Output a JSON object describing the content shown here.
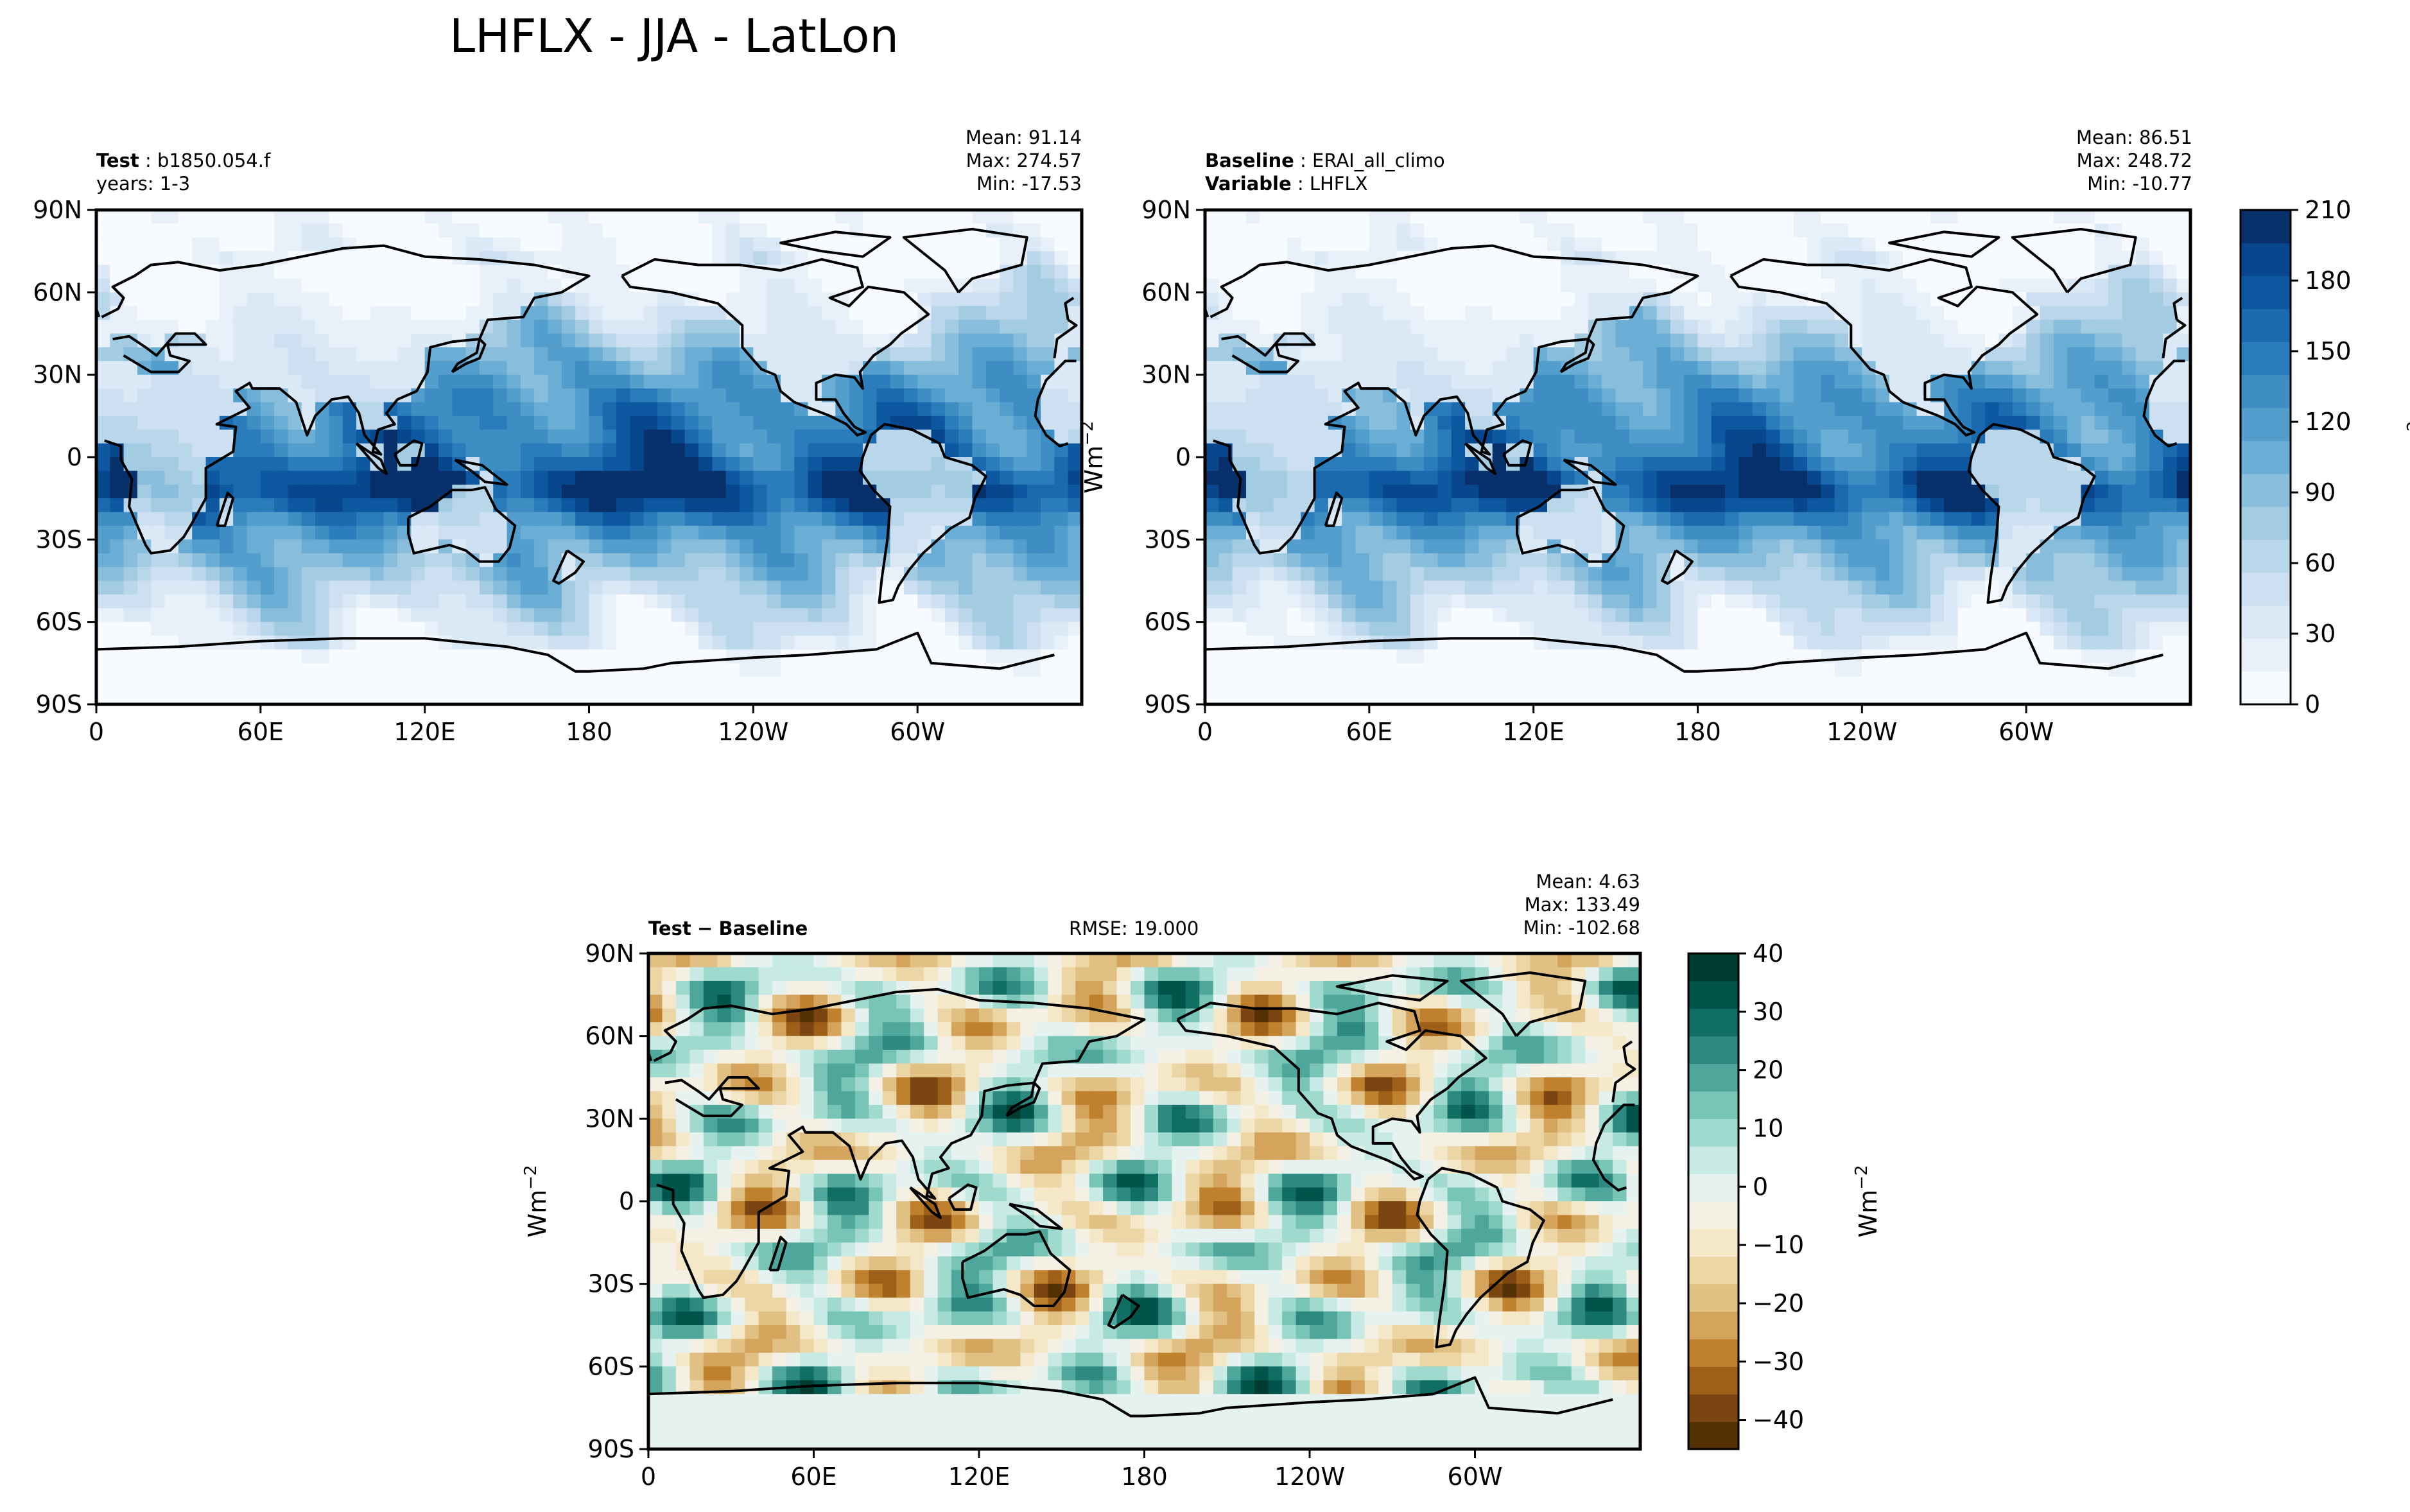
{
  "page": {
    "title": "LHFLX - JJA - LatLon"
  },
  "chart_data": [
    {
      "type": "heatmap",
      "panel": "test",
      "title_parts": {
        "label": "Test",
        "value": "b1850.054.f",
        "line2": "years: 1-3"
      },
      "stats": {
        "mean": "Mean: 91.14",
        "max": "Max: 274.57",
        "min": "Min: -17.53"
      },
      "x_ticks": [
        "0",
        "60E",
        "120E",
        "180",
        "120W",
        "60W"
      ],
      "y_ticks": [
        "90N",
        "60N",
        "30N",
        "0",
        "30S",
        "60S",
        "90S"
      ],
      "xlim": [
        0,
        360
      ],
      "ylim": [
        -90,
        90
      ],
      "colormap": "Blues",
      "units": "Wm$^{-2}$"
    },
    {
      "type": "heatmap",
      "panel": "baseline",
      "title_parts": {
        "label": "Baseline",
        "value": "ERAI_all_climo",
        "label2": "Variable",
        "value2": "LHFLX"
      },
      "stats": {
        "mean": "Mean: 86.51",
        "max": "Max: 248.72",
        "min": "Min: -10.77"
      },
      "x_ticks": [
        "0",
        "60E",
        "120E",
        "180",
        "120W",
        "60W"
      ],
      "y_ticks": [
        "90N",
        "60N",
        "30N",
        "0",
        "30S",
        "60S",
        "90S"
      ],
      "xlim": [
        0,
        360
      ],
      "ylim": [
        -90,
        90
      ],
      "ylabel": "Wm",
      "colorbar": {
        "ticks": [
          "210",
          "180",
          "150",
          "120",
          "90",
          "60",
          "30",
          "0"
        ],
        "range": [
          0,
          210
        ],
        "levels": 15,
        "label": "Wm",
        "colors": [
          "#f7fbff",
          "#e8f1fa",
          "#dbe9f6",
          "#cde0f1",
          "#bad6eb",
          "#a3cbe2",
          "#88bedc",
          "#6aaed6",
          "#539ecd",
          "#3e8ec4",
          "#2a7cba",
          "#1b6aaf",
          "#0d58a1",
          "#08478d",
          "#08306b"
        ]
      }
    },
    {
      "type": "heatmap",
      "panel": "difference",
      "title_parts": {
        "label": "Test",
        "op": "−",
        "label2": "Baseline"
      },
      "rmse": "RMSE: 19.000",
      "stats": {
        "mean": "Mean:  4.63",
        "max": "Max: 133.49",
        "min": "Min: -102.68"
      },
      "x_ticks": [
        "0",
        "60E",
        "120E",
        "180",
        "120W",
        "60W"
      ],
      "y_ticks": [
        "90N",
        "60N",
        "30N",
        "0",
        "30S",
        "60S",
        "90S"
      ],
      "xlim": [
        0,
        360
      ],
      "ylim": [
        -90,
        90
      ],
      "ylabel": "Wm",
      "colorbar": {
        "ticks": [
          "40",
          "30",
          "20",
          "10",
          "0",
          "−10",
          "−20",
          "−30",
          "−40"
        ],
        "range": [
          -45,
          40
        ],
        "label": "Wm",
        "colors": [
          "#543005",
          "#7a4510",
          "#9e5f18",
          "#bf812d",
          "#d4a35c",
          "#e0c083",
          "#ecd6a6",
          "#f5e8c8",
          "#f5f0e4",
          "#e6f2ef",
          "#c7eae4",
          "#a0d9ce",
          "#78c4b7",
          "#4fa69b",
          "#2e8a80",
          "#106e63",
          "#01544a",
          "#003c30"
        ]
      }
    }
  ]
}
